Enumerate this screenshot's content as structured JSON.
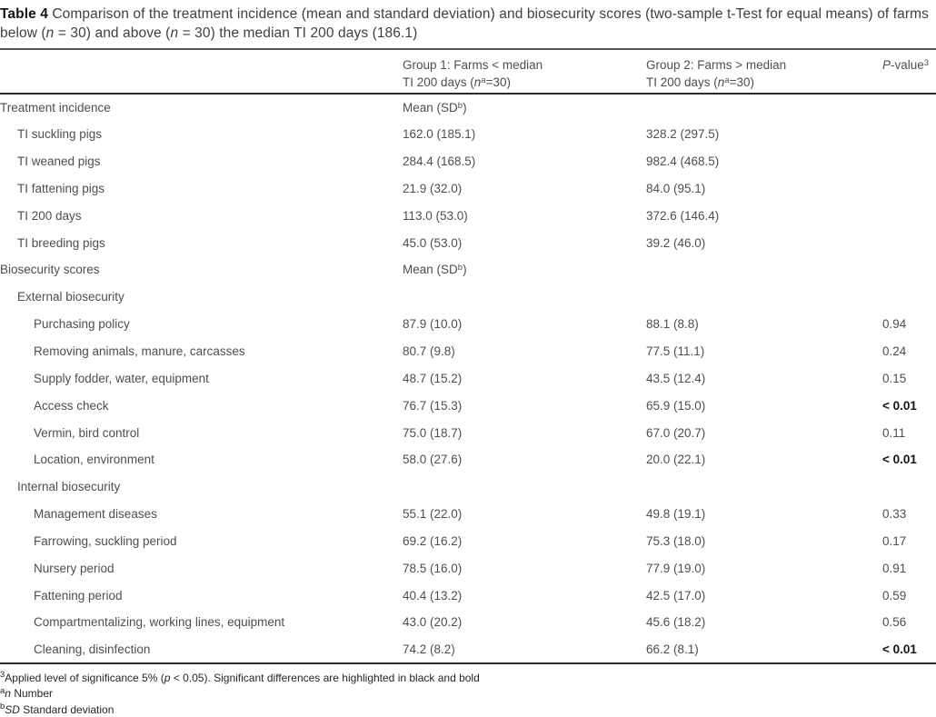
{
  "colors": {
    "background": "#ffffff",
    "body_text": "#4e4e50",
    "title_text": "#3f3f41",
    "bold_text": "#141414",
    "rule_title": "#55565a",
    "rule_dark": "#2a2a2a"
  },
  "title": {
    "segments": [
      {
        "t": "Table 4",
        "s": "b"
      },
      {
        "t": " Comparison of the treatment incidence (mean and standard deviation) and biosecurity scores (two-sample t-Test for equal means) of farms below ("
      },
      {
        "t": "n",
        "s": "i"
      },
      {
        "t": " = 30) and above ("
      },
      {
        "t": "n",
        "s": "i"
      },
      {
        "t": " = 30) the median TI 200 days (186.1)"
      }
    ]
  },
  "table": {
    "header": {
      "col1": "",
      "col2_line1": "Group 1: Farms < median",
      "col2_line2": [
        {
          "t": "TI 200 days ("
        },
        {
          "t": "n",
          "s": "i"
        },
        {
          "t": "a",
          "s": "sup"
        },
        {
          "t": "=30)"
        }
      ],
      "col3_line1": "Group 2: Farms > median",
      "col3_line2": [
        {
          "t": "TI 200 days ("
        },
        {
          "t": "n",
          "s": "i"
        },
        {
          "t": "a",
          "s": "sup"
        },
        {
          "t": "=30)"
        }
      ],
      "col4": [
        {
          "t": "P",
          "s": "i"
        },
        {
          "t": "-value"
        },
        {
          "t": "3",
          "s": "sup"
        }
      ]
    },
    "rows": [
      {
        "label": "Treatment incidence",
        "group1": [
          {
            "t": "Mean (SD"
          },
          {
            "t": "b",
            "s": "sup"
          },
          {
            "t": ")"
          }
        ],
        "group2": "",
        "pvalue": ""
      },
      {
        "label": "TI suckling pigs",
        "group1": "162.0 (185.1)",
        "group2": "328.2 (297.5)",
        "pvalue": ""
      },
      {
        "label": "TI weaned pigs",
        "group1": "284.4 (168.5)",
        "group2": "982.4 (468.5)",
        "pvalue": ""
      },
      {
        "label": "TI fattening pigs",
        "group1": "21.9 (32.0)",
        "group2": "84.0 (95.1)",
        "pvalue": ""
      },
      {
        "label": "TI 200 days",
        "group1": "113.0 (53.0)",
        "group2": "372.6 (146.4)",
        "pvalue": ""
      },
      {
        "label": "TI breeding pigs",
        "group1": "45.0 (53.0)",
        "group2": "39.2 (46.0)",
        "pvalue": ""
      },
      {
        "label": "Biosecurity scores",
        "group1": [
          {
            "t": "Mean (SD"
          },
          {
            "t": "b",
            "s": "sup"
          },
          {
            "t": ")"
          }
        ],
        "group2": "",
        "pvalue": ""
      },
      {
        "label": "External biosecurity",
        "group1": "",
        "group2": "",
        "pvalue": ""
      },
      {
        "label": "Purchasing policy",
        "group1": "87.9 (10.0)",
        "group2": "88.1 (8.8)",
        "pvalue": "0.94"
      },
      {
        "label": "Removing animals, manure, carcasses",
        "group1": "80.7 (9.8)",
        "group2": "77.5 (11.1)",
        "pvalue": "0.24"
      },
      {
        "label": "Supply fodder, water, equipment",
        "group1": "48.7 (15.2)",
        "group2": "43.5 (12.4)",
        "pvalue": "0.15"
      },
      {
        "label": "Access check",
        "group1": "76.7 (15.3)",
        "group2": "65.9 (15.0)",
        "pvalue": [
          {
            "t": "< 0.01",
            "s": "b"
          }
        ]
      },
      {
        "label": "Vermin, bird control",
        "group1": "75.0 (18.7)",
        "group2": "67.0 (20.7)",
        "pvalue": "0.11"
      },
      {
        "label": "Location, environment",
        "group1": "58.0 (27.6)",
        "group2": "20.0 (22.1)",
        "pvalue": [
          {
            "t": "< 0.01",
            "s": "b"
          }
        ]
      },
      {
        "label": "Internal biosecurity",
        "group1": "",
        "group2": "",
        "pvalue": ""
      },
      {
        "label": "Management diseases",
        "group1": "55.1 (22.0)",
        "group2": "49.8 (19.1)",
        "pvalue": "0.33"
      },
      {
        "label": "Farrowing, suckling period",
        "group1": "69.2 (16.2)",
        "group2": "75.3 (18.0)",
        "pvalue": "0.17"
      },
      {
        "label": "Nursery period",
        "group1": "78.5 (16.0)",
        "group2": "77.9 (19.0)",
        "pvalue": "0.91"
      },
      {
        "label": "Fattening period",
        "group1": "40.4 (13.2)",
        "group2": "42.5 (17.0)",
        "pvalue": "0.59"
      },
      {
        "label": "Compartmentalizing, working lines, equipment",
        "group1": "43.0 (20.2)",
        "group2": "45.6 (18.2)",
        "pvalue": "0.56"
      },
      {
        "label": "Cleaning, disinfection",
        "group1": "74.2 (8.2)",
        "group2": "66.2 (8.1)",
        "pvalue": [
          {
            "t": "< 0.01",
            "s": "b"
          }
        ]
      }
    ]
  },
  "footnotes": [
    [
      {
        "t": "3",
        "s": "sup"
      },
      {
        "t": "Applied level of significance 5% ("
      },
      {
        "t": "p",
        "s": "i"
      },
      {
        "t": " < 0.05). Significant differences are highlighted in black and bold"
      }
    ],
    [
      {
        "t": "a",
        "s": "sup"
      },
      {
        "t": "n",
        "s": "i"
      },
      {
        "t": " Number"
      }
    ],
    [
      {
        "t": "b",
        "s": "sup"
      },
      {
        "t": "SD",
        "s": "i"
      },
      {
        "t": " Standard deviation"
      }
    ]
  ]
}
